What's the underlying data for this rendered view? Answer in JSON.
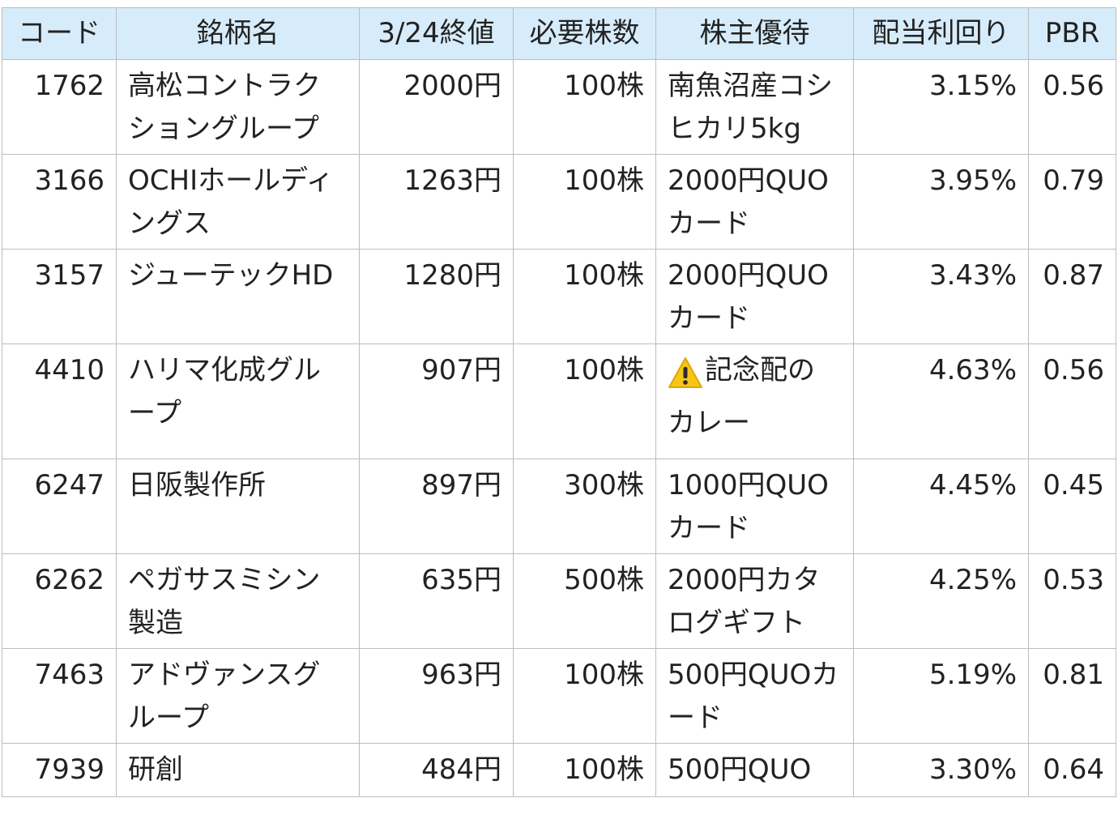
{
  "headers": [
    "コード",
    "銘柄名",
    "3/24終値",
    "必要株数",
    "株主優待",
    "配当利回り",
    "PBR"
  ],
  "rows": [
    {
      "code": "1762",
      "name": "高松コントラクショングループ",
      "price": "2000円",
      "shares": "100株",
      "benefit": "南魚沼産コシヒカリ5kg",
      "benefit_warning": false,
      "yield": "3.15%",
      "pbr": "0.56"
    },
    {
      "code": "3166",
      "name": "OCHIホールディングス",
      "price": "1263円",
      "shares": "100株",
      "benefit": "2000円QUOカード",
      "benefit_warning": false,
      "yield": "3.95%",
      "pbr": "0.79"
    },
    {
      "code": "3157",
      "name": "ジューテックHD",
      "price": "1280円",
      "shares": "100株",
      "benefit": "2000円QUOカード",
      "benefit_warning": false,
      "yield": "3.43%",
      "pbr": "0.87"
    },
    {
      "code": "4410",
      "name": "ハリマ化成グループ",
      "price": "907円",
      "shares": "100株",
      "benefit": "記念配のカレー",
      "benefit_warning": true,
      "yield": "4.63%",
      "pbr": "0.56"
    },
    {
      "code": "6247",
      "name": "日阪製作所",
      "price": "897円",
      "shares": "300株",
      "benefit": "1000円QUOカード",
      "benefit_warning": false,
      "yield": "4.45%",
      "pbr": "0.45"
    },
    {
      "code": "6262",
      "name": "ペガサスミシン製造",
      "price": "635円",
      "shares": "500株",
      "benefit": "2000円カタログギフト",
      "benefit_warning": false,
      "yield": "4.25%",
      "pbr": "0.53"
    },
    {
      "code": "7463",
      "name": "アドヴァンスグループ",
      "price": "963円",
      "shares": "100株",
      "benefit": "500円QUOカード",
      "benefit_warning": false,
      "yield": "5.19%",
      "pbr": "0.81"
    },
    {
      "code": "7939",
      "name": "研創",
      "price": "484円",
      "shares": "100株",
      "benefit": "500円QUO",
      "benefit_warning": false,
      "yield": "3.30%",
      "pbr": "0.64"
    }
  ],
  "icons": {
    "warning": "warning-icon"
  },
  "colors": {
    "header_bg": "#d7ecfa",
    "border": "#bdbdbd",
    "warning_yellow": "#f5c518"
  }
}
